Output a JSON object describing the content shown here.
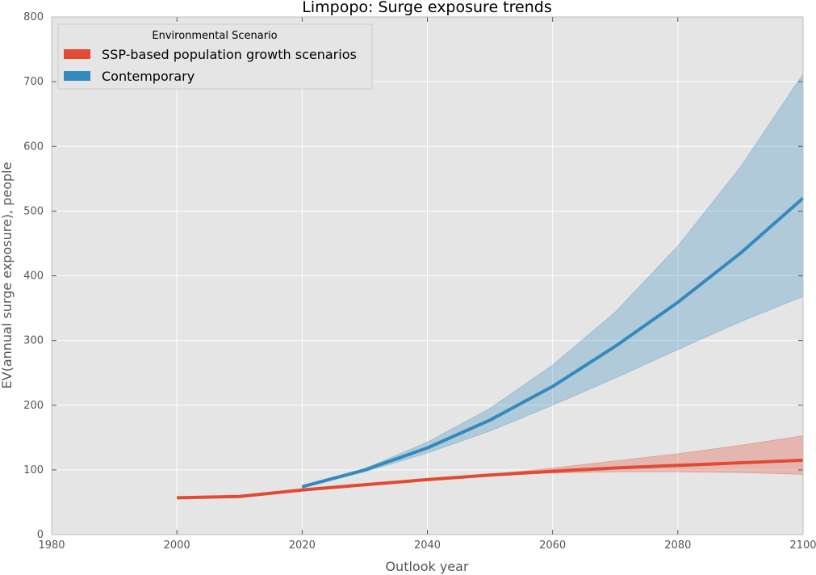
{
  "chart_data": {
    "type": "line",
    "title": "Limpopo: Surge exposure trends",
    "xlabel": "Outlook year",
    "ylabel": "EV(annual surge exposure), people",
    "xlim": [
      1980,
      2100
    ],
    "ylim": [
      0,
      800
    ],
    "xticks": [
      1980,
      2000,
      2020,
      2040,
      2060,
      2080,
      2100
    ],
    "yticks": [
      0,
      100,
      200,
      300,
      400,
      500,
      600,
      700,
      800
    ],
    "grid": true,
    "legend": {
      "title": "Environmental Scenario",
      "placement": "top-left"
    },
    "series": [
      {
        "name": "SSP-based population growth scenarios",
        "color": "#E24A33",
        "x": [
          2000,
          2010,
          2020,
          2030,
          2040,
          2050,
          2060,
          2070,
          2080,
          2090,
          2100
        ],
        "values": [
          57,
          59,
          69,
          77,
          85,
          92,
          98,
          103,
          107,
          111,
          115
        ],
        "lower": [
          57,
          59,
          69,
          77,
          85,
          91,
          95,
          97,
          97,
          96,
          93
        ],
        "upper": [
          57,
          59,
          69,
          77,
          85,
          93,
          103,
          114,
          125,
          138,
          153
        ]
      },
      {
        "name": "Contemporary",
        "color": "#348ABD",
        "x": [
          2020,
          2030,
          2040,
          2050,
          2060,
          2070,
          2080,
          2090,
          2100
        ],
        "values": [
          74,
          100,
          134,
          177,
          229,
          291,
          359,
          435,
          520
        ],
        "lower": [
          72,
          97,
          126,
          160,
          200,
          242,
          286,
          329,
          368
        ],
        "upper": [
          76,
          102,
          143,
          195,
          262,
          344,
          446,
          568,
          712
        ]
      }
    ]
  }
}
